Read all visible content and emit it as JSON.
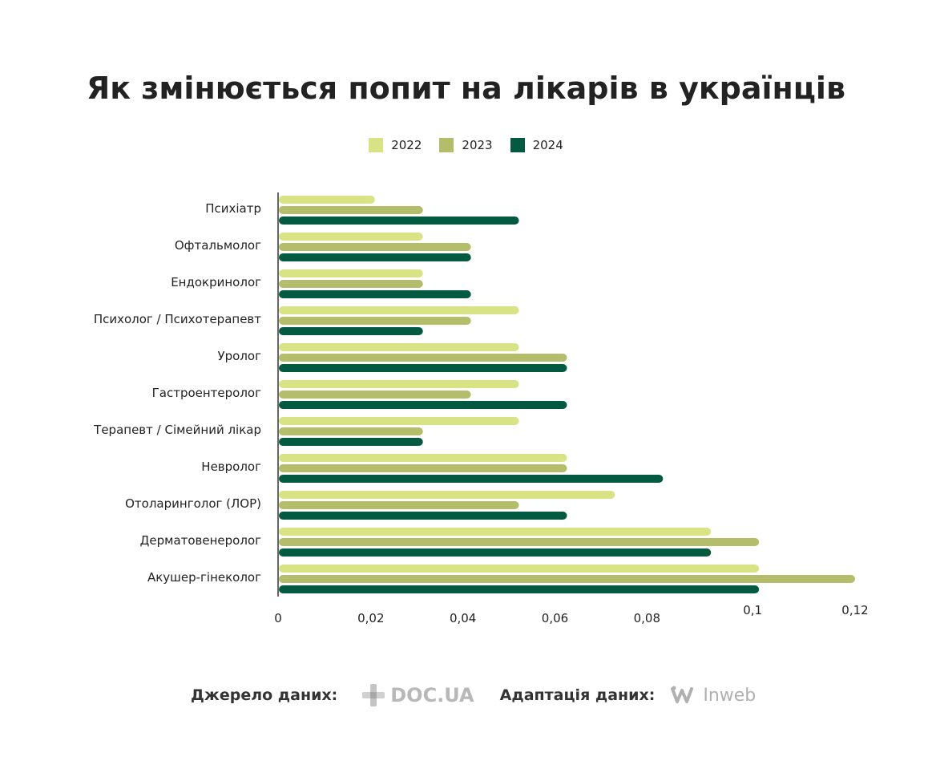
{
  "title": "Як змінюється попит на лікарів в українців",
  "legend": [
    {
      "label": "2022",
      "color": "#d8e386"
    },
    {
      "label": "2023",
      "color": "#b4bd6a"
    },
    {
      "label": "2024",
      "color": "#045a40"
    }
  ],
  "chart_data": {
    "type": "bar",
    "orientation": "horizontal",
    "categories": [
      "Психіатр",
      "Офтальмолог",
      "Ендокринолог",
      "Психолог / Психотерапевт",
      "Уролог",
      "Гастроентеролог",
      "Терапевт / Сімейний лікар",
      "Невролог",
      "Отоларинголог (ЛОР)",
      "Дерматовенеролог",
      "Акушер-гінеколог"
    ],
    "series": [
      {
        "name": "2022",
        "color": "#d8e386",
        "values": [
          0.02,
          0.03,
          0.03,
          0.05,
          0.05,
          0.05,
          0.05,
          0.06,
          0.07,
          0.09,
          0.1
        ]
      },
      {
        "name": "2023",
        "color": "#b4bd6a",
        "values": [
          0.03,
          0.04,
          0.03,
          0.04,
          0.06,
          0.04,
          0.03,
          0.06,
          0.05,
          0.1,
          0.12
        ]
      },
      {
        "name": "2024",
        "color": "#045a40",
        "values": [
          0.05,
          0.04,
          0.04,
          0.03,
          0.06,
          0.06,
          0.03,
          0.08,
          0.06,
          0.09,
          0.1
        ]
      }
    ],
    "x_ticks": [
      "0",
      "0,02",
      "0,04",
      "0,06",
      "0,08",
      "0,1",
      "0,12"
    ],
    "xlim": [
      0,
      0.12
    ],
    "grid": false,
    "legend_position": "top-center"
  },
  "footer": {
    "source_label": "Джерело даних:",
    "source_logo": "DOC.UA",
    "adaptation_label": "Адаптація даних:",
    "adaptation_logo": "Inweb"
  }
}
